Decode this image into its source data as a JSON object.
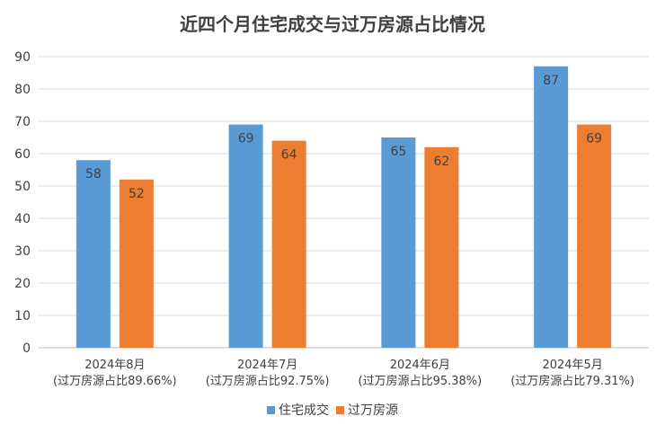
{
  "chart_data": {
    "type": "bar",
    "title": "近四个月住宅成交与过万房源占比情况",
    "categories": [
      "2024年8月",
      "2024年7月",
      "2024年6月",
      "2024年5月"
    ],
    "category_sublabels": [
      "(过万房源占比89.66%)",
      "(过万房源占比92.75%)",
      "(过万房源占比95.38%)",
      "(过万房源占比79.31%)"
    ],
    "series": [
      {
        "name": "住宅成交",
        "values": [
          58,
          69,
          65,
          87
        ],
        "color": "#5b9bd5"
      },
      {
        "name": "过万房源",
        "values": [
          52,
          64,
          62,
          69
        ],
        "color": "#ed7d31"
      }
    ],
    "ylim": [
      0,
      90
    ],
    "yticks": [
      0,
      10,
      20,
      30,
      40,
      50,
      60,
      70,
      80,
      90
    ],
    "grid": true,
    "legend_position": "bottom"
  }
}
